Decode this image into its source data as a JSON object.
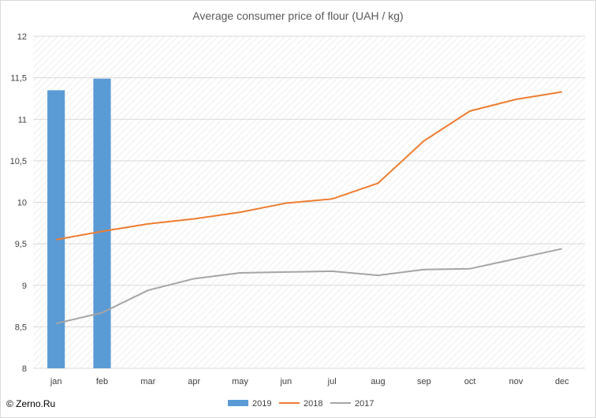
{
  "credit": "© Zerno.Ru",
  "colors": {
    "series_2019": "#5b9bd5",
    "series_2018": "#ed7d31",
    "series_2017": "#a5a5a5",
    "grid": "#d9d9d9",
    "hatch": "#e4e4e4"
  },
  "chart_data": {
    "type": "bar+line",
    "title": "Average consumer price of flour (UAH / kg)",
    "xlabel": "",
    "ylabel": "",
    "categories": [
      "jan",
      "feb",
      "mar",
      "apr",
      "may",
      "jun",
      "jul",
      "aug",
      "sep",
      "oct",
      "nov",
      "dec"
    ],
    "ylim": [
      8,
      12
    ],
    "yticks": [
      8,
      8.5,
      9,
      9.5,
      10,
      10.5,
      11,
      11.5,
      12
    ],
    "ytick_labels": [
      "8",
      "8,5",
      "9",
      "9,5",
      "10",
      "10,5",
      "11",
      "11,5",
      "12"
    ],
    "grid": true,
    "legend_position": "bottom",
    "series": [
      {
        "name": "2019",
        "type": "bar",
        "values": [
          11.35,
          11.49,
          null,
          null,
          null,
          null,
          null,
          null,
          null,
          null,
          null,
          null
        ]
      },
      {
        "name": "2018",
        "type": "line",
        "values": [
          9.55,
          9.65,
          9.74,
          9.8,
          9.88,
          9.99,
          10.04,
          10.23,
          10.74,
          11.1,
          11.24,
          11.33
        ]
      },
      {
        "name": "2017",
        "type": "line",
        "values": [
          8.54,
          8.67,
          8.94,
          9.08,
          9.15,
          9.16,
          9.17,
          9.12,
          9.19,
          9.2,
          9.32,
          9.44
        ]
      }
    ]
  }
}
